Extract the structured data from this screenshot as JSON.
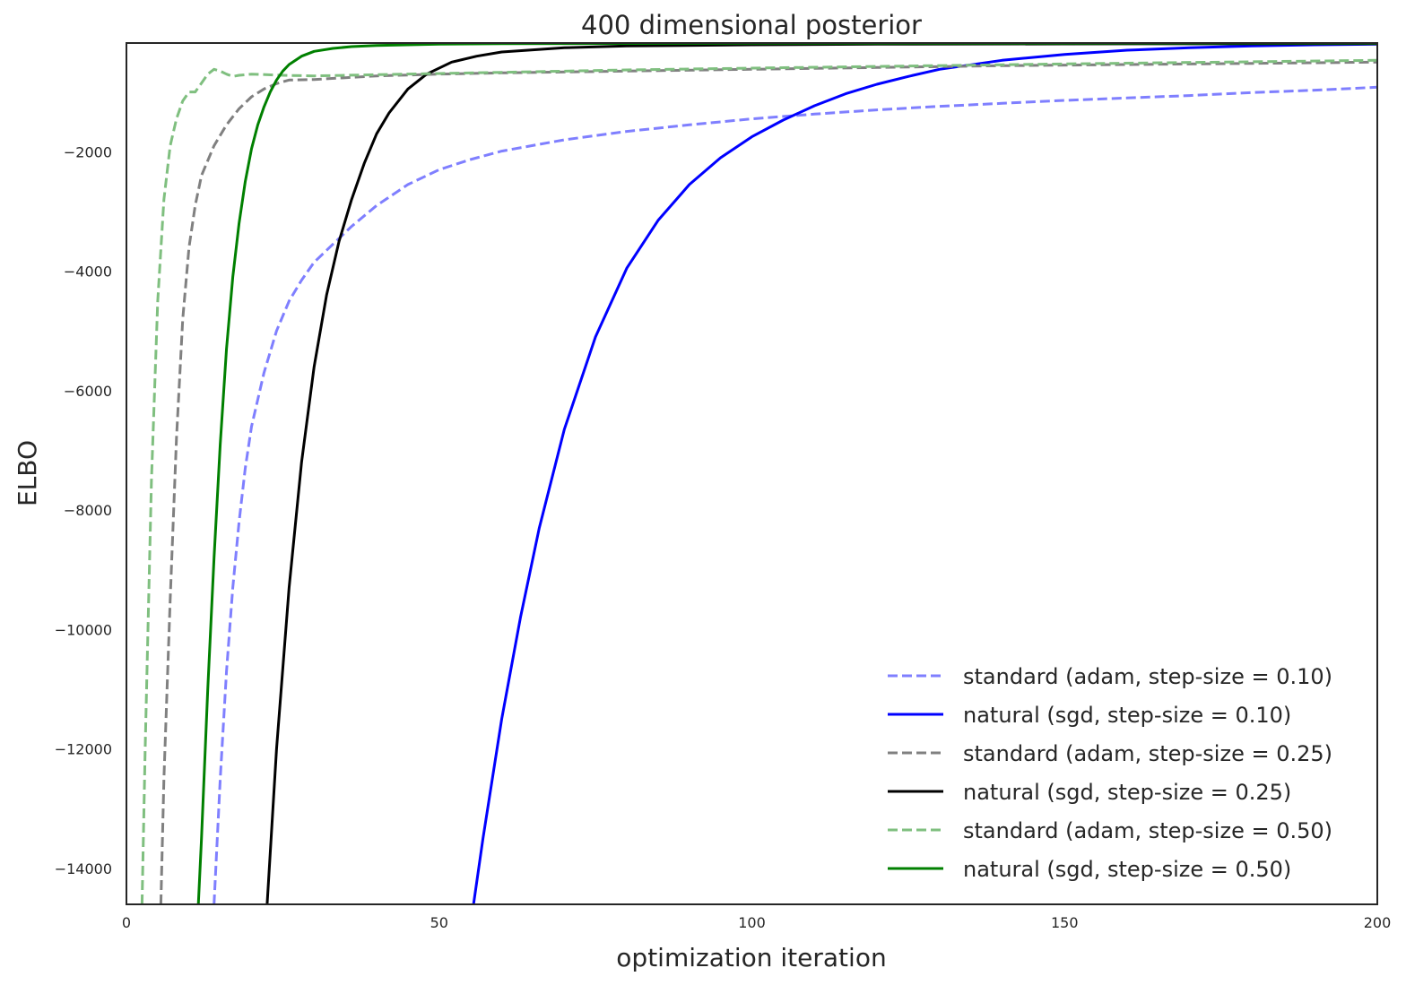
{
  "chart_data": {
    "type": "line",
    "title": "400 dimensional posterior",
    "xlabel": "optimization iteration",
    "ylabel": "ELBO",
    "xlim": [
      0,
      200
    ],
    "ylim": [
      -14600,
      -180
    ],
    "xticks": [
      0,
      50,
      100,
      150,
      200
    ],
    "xtick_labels": [
      "0",
      "50",
      "100",
      "150",
      "200"
    ],
    "yticks": [
      -14000,
      -12000,
      -10000,
      -8000,
      -6000,
      -4000,
      -2000
    ],
    "ytick_labels": [
      "−14000",
      "−12000",
      "−10000",
      "−8000",
      "−6000",
      "−4000",
      "−2000"
    ],
    "grid": false,
    "legend_position": "bottom-right",
    "series": [
      {
        "name": "standard (adam, step-size = 0.10)",
        "color": "#7f7fff",
        "dashed": true,
        "x": [
          14,
          15,
          16,
          17,
          18,
          19,
          20,
          22,
          24,
          26,
          28,
          30,
          33,
          36,
          40,
          45,
          50,
          55,
          60,
          70,
          80,
          90,
          100,
          110,
          120,
          130,
          140,
          150,
          160,
          170,
          180,
          190,
          200
        ],
        "y": [
          -14600,
          -12500,
          -10700,
          -9300,
          -8200,
          -7300,
          -6600,
          -5700,
          -5000,
          -4500,
          -4150,
          -3850,
          -3550,
          -3250,
          -2900,
          -2550,
          -2300,
          -2130,
          -1990,
          -1800,
          -1660,
          -1550,
          -1450,
          -1370,
          -1300,
          -1240,
          -1190,
          -1140,
          -1100,
          -1060,
          -1010,
          -970,
          -920
        ]
      },
      {
        "name": "natural (sgd, step-size = 0.10)",
        "color": "#0000ff",
        "dashed": false,
        "x": [
          55.5,
          57,
          60,
          63,
          66,
          70,
          75,
          80,
          85,
          90,
          95,
          100,
          105,
          110,
          115,
          120,
          125,
          130,
          140,
          150,
          160,
          170,
          180,
          190,
          200
        ],
        "y": [
          -14600,
          -13500,
          -11500,
          -9800,
          -8300,
          -6650,
          -5100,
          -3950,
          -3150,
          -2550,
          -2100,
          -1750,
          -1470,
          -1230,
          -1030,
          -870,
          -740,
          -620,
          -470,
          -370,
          -300,
          -260,
          -230,
          -210,
          -200
        ]
      },
      {
        "name": "standard (adam, step-size = 0.25)",
        "color": "#808080",
        "dashed": true,
        "x": [
          5.5,
          6,
          7,
          8,
          9,
          10,
          11,
          12,
          14,
          16,
          18,
          20,
          22,
          24,
          26,
          30,
          35,
          40,
          50,
          60,
          80,
          100,
          120,
          140,
          160,
          180,
          200
        ],
        "y": [
          -14600,
          -12500,
          -9500,
          -6800,
          -4800,
          -3600,
          -2900,
          -2400,
          -1900,
          -1550,
          -1280,
          -1080,
          -950,
          -860,
          -800,
          -790,
          -760,
          -730,
          -700,
          -680,
          -650,
          -620,
          -590,
          -560,
          -540,
          -520,
          -500
        ]
      },
      {
        "name": "natural (sgd, step-size = 0.25)",
        "color": "#000000",
        "dashed": false,
        "x": [
          22.5,
          24,
          26,
          28,
          30,
          32,
          34,
          36,
          38,
          40,
          42,
          45,
          48,
          52,
          56,
          60,
          70,
          80,
          100,
          120,
          150,
          200
        ],
        "y": [
          -14600,
          -12000,
          -9300,
          -7200,
          -5600,
          -4400,
          -3500,
          -2800,
          -2200,
          -1700,
          -1350,
          -950,
          -700,
          -500,
          -400,
          -330,
          -260,
          -230,
          -210,
          -200,
          -195,
          -190
        ]
      },
      {
        "name": "standard (adam, step-size = 0.50)",
        "color": "#7fbf7f",
        "dashed": true,
        "x": [
          2.5,
          3,
          4,
          5,
          6,
          7,
          8,
          9,
          10,
          11,
          12,
          13,
          14,
          15,
          16,
          17,
          18,
          20,
          25,
          30,
          40,
          60,
          80,
          100,
          150,
          200
        ],
        "y": [
          -14600,
          -12000,
          -7500,
          -4500,
          -2800,
          -1900,
          -1450,
          -1150,
          -1000,
          -1000,
          -850,
          -700,
          -620,
          -650,
          -700,
          -740,
          -720,
          -700,
          -720,
          -730,
          -710,
          -670,
          -630,
          -600,
          -530,
          -470
        ]
      },
      {
        "name": "natural (sgd, step-size = 0.50)",
        "color": "#008000",
        "dashed": false,
        "x": [
          11.5,
          12,
          13,
          14,
          15,
          16,
          17,
          18,
          19,
          20,
          21,
          22,
          23,
          24,
          25,
          26,
          28,
          30,
          33,
          36,
          40,
          50,
          60,
          80,
          100,
          150,
          200
        ],
        "y": [
          -14600,
          -13500,
          -11000,
          -8800,
          -6900,
          -5300,
          -4100,
          -3200,
          -2500,
          -1950,
          -1550,
          -1250,
          -1000,
          -800,
          -650,
          -540,
          -400,
          -320,
          -270,
          -240,
          -220,
          -200,
          -192,
          -188,
          -185,
          -183,
          -182
        ]
      }
    ]
  }
}
